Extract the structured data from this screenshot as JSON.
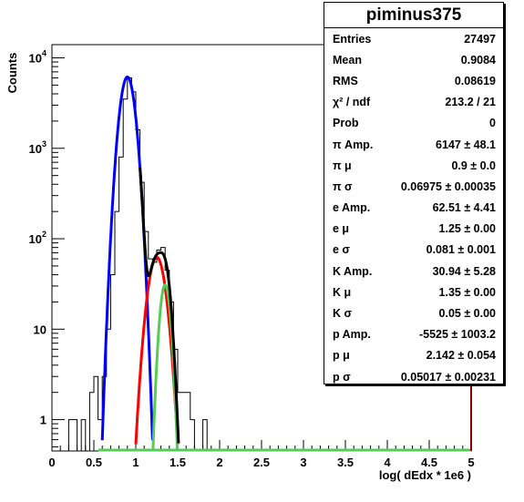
{
  "chart_data": {
    "type": "histogram",
    "xlabel": "log( dEdx * 1e6 )",
    "ylabel": "Counts",
    "xlim": [
      0,
      5
    ],
    "ylim": [
      0.45,
      14000
    ],
    "log_y": true,
    "x_ticks": [
      "0",
      "0.5",
      "1",
      "1.5",
      "2",
      "2.5",
      "3",
      "3.5",
      "4",
      "4.5",
      "5"
    ],
    "y_ticks": [
      {
        "value": 1,
        "base": "1",
        "exp": ""
      },
      {
        "value": 10,
        "base": "10",
        "exp": ""
      },
      {
        "value": 100,
        "base": "10",
        "exp": "2"
      },
      {
        "value": 1000,
        "base": "10",
        "exp": "3"
      },
      {
        "value": 10000,
        "base": "10",
        "exp": "4"
      }
    ],
    "histogram": {
      "bins": [
        [
          0.2,
          1
        ],
        [
          0.25,
          1
        ],
        [
          0.3,
          0
        ],
        [
          0.35,
          1
        ],
        [
          0.4,
          0
        ],
        [
          0.45,
          2
        ],
        [
          0.5,
          3
        ],
        [
          0.55,
          1
        ],
        [
          0.6,
          3
        ],
        [
          0.65,
          10
        ],
        [
          0.7,
          40
        ],
        [
          0.75,
          200
        ],
        [
          0.8,
          800
        ],
        [
          0.85,
          3500
        ],
        [
          0.9,
          6000
        ],
        [
          0.95,
          4200
        ],
        [
          1.0,
          1600
        ],
        [
          1.05,
          420
        ],
        [
          1.1,
          120
        ],
        [
          1.15,
          60
        ],
        [
          1.2,
          55
        ],
        [
          1.25,
          75
        ],
        [
          1.3,
          80
        ],
        [
          1.35,
          45
        ],
        [
          1.4,
          20
        ],
        [
          1.45,
          6
        ],
        [
          1.5,
          2
        ],
        [
          1.55,
          2
        ],
        [
          1.6,
          2
        ],
        [
          1.65,
          1
        ],
        [
          1.7,
          0
        ],
        [
          1.75,
          0
        ],
        [
          1.8,
          1
        ]
      ],
      "bin_width": 0.05,
      "color": "#000000"
    },
    "fits": [
      {
        "component": "pi",
        "color": "#0000ff",
        "amp": 6147,
        "mu": 0.9,
        "sigma": 0.06975
      },
      {
        "component": "e",
        "color": "#ff0000",
        "amp": 62.51,
        "mu": 1.25,
        "sigma": 0.081
      },
      {
        "component": "K",
        "color": "#55cc55",
        "amp": 30.94,
        "mu": 1.35,
        "sigma": 0.05
      },
      {
        "component": "total",
        "color": "#000000"
      }
    ],
    "stats": {
      "title": "piminus375",
      "rows": [
        {
          "label": "Entries",
          "value": "27497"
        },
        {
          "label": "Mean",
          "value": "0.9084"
        },
        {
          "label": "RMS",
          "value": "0.08619"
        },
        {
          "label": "χ² / ndf",
          "value": "213.2 / 21"
        },
        {
          "label": "Prob",
          "value": "0"
        },
        {
          "label": "π Amp.",
          "value": "6147 ± 48.1"
        },
        {
          "label": "π μ",
          "value": "0.9 ± 0.0"
        },
        {
          "label": "π σ",
          "value": "0.06975 ± 0.00035"
        },
        {
          "label": "e Amp.",
          "value": "62.51 ± 4.41"
        },
        {
          "label": "e μ",
          "value": "1.25 ± 0.00"
        },
        {
          "label": "e σ",
          "value": "0.081 ± 0.001"
        },
        {
          "label": "K Amp.",
          "value": "30.94 ± 5.28"
        },
        {
          "label": "K μ",
          "value": "1.35 ± 0.00"
        },
        {
          "label": "K σ",
          "value": "0.05 ± 0.00"
        },
        {
          "label": "p Amp.",
          "value": "-5525 ± 1003.2"
        },
        {
          "label": "p μ",
          "value": "2.142 ± 0.054"
        },
        {
          "label": "p σ",
          "value": "0.05017 ± 0.00231"
        }
      ]
    }
  }
}
